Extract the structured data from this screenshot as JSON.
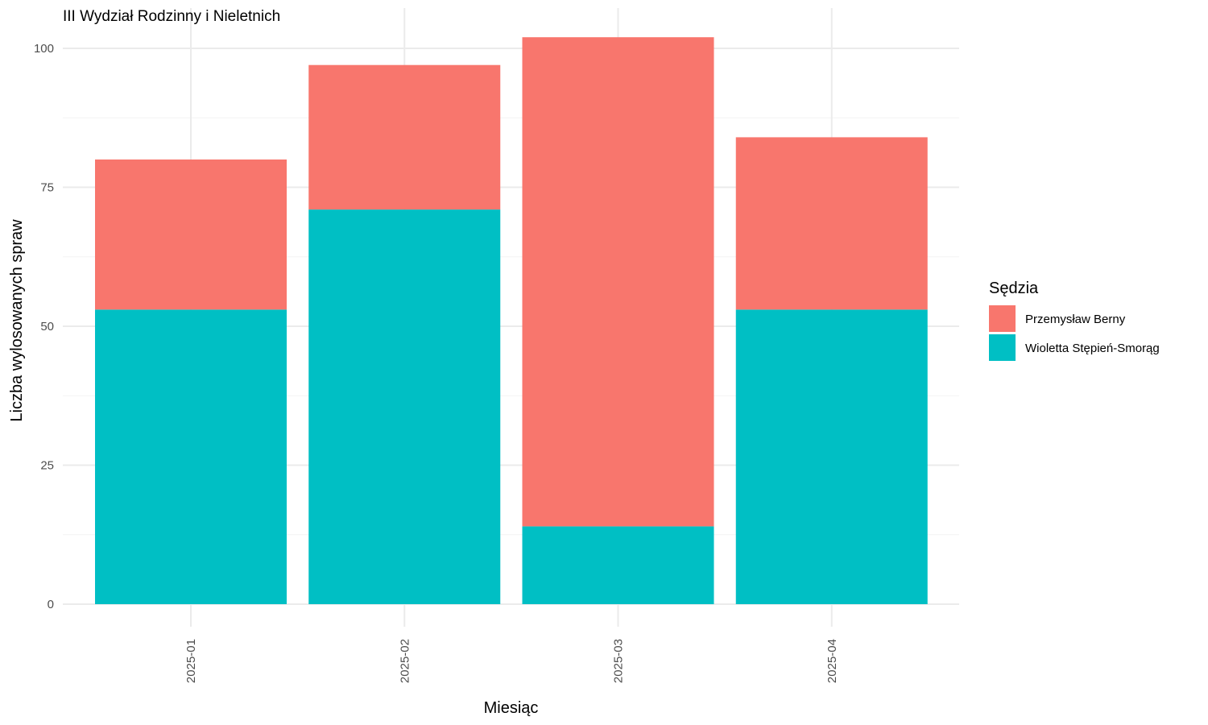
{
  "chart_data": {
    "type": "bar",
    "stacked": true,
    "title": "III Wydział Rodzinny i Nieletnich",
    "xlabel": "Miesiąc",
    "ylabel": "Liczba wylosowanych spraw",
    "categories": [
      "2025-01",
      "2025-02",
      "2025-03",
      "2025-04"
    ],
    "series": [
      {
        "name": "Wioletta Stępień-Smorąg",
        "color": "#00BFC4",
        "values": [
          53,
          71,
          14,
          53
        ]
      },
      {
        "name": "Przemysław Berny",
        "color": "#F8766D",
        "values": [
          27,
          26,
          88,
          31
        ]
      }
    ],
    "ylim": [
      0,
      103
    ],
    "yticks": [
      0,
      25,
      50,
      75,
      100
    ],
    "grid": true,
    "x_tick_rotation": -90,
    "legend": {
      "title": "Sędzia",
      "position": "right",
      "order": [
        "Przemysław Berny",
        "Wioletta Stępień-Smorąg"
      ]
    }
  }
}
